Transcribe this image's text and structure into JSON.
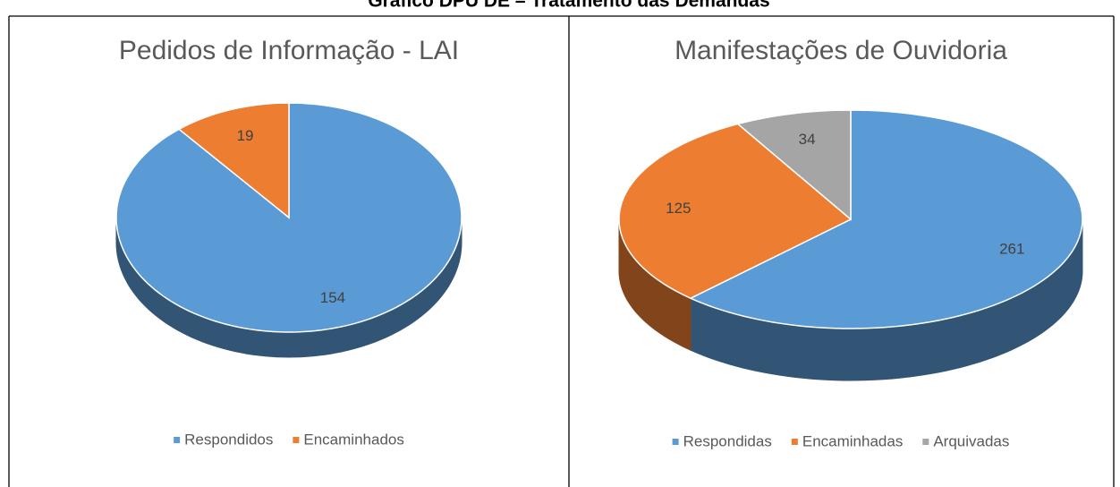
{
  "page_title": "Gráfico DPU DE – Tratamento das Demandas",
  "chart_data": [
    {
      "type": "pie3d",
      "title": "Pedidos de Informação - LAI",
      "categories": [
        "Respondidos",
        "Encaminhados"
      ],
      "values": [
        154,
        19
      ],
      "colors": [
        "#5b9bd5",
        "#ed7d31"
      ],
      "legend": "bottom"
    },
    {
      "type": "pie3d",
      "title": "Manifestações de Ouvidoria",
      "categories": [
        "Respondidas",
        "Encaminhadas",
        "Arquivadas"
      ],
      "values": [
        261,
        125,
        34
      ],
      "colors": [
        "#5b9bd5",
        "#ed7d31",
        "#a5a5a5"
      ],
      "legend": "bottom"
    }
  ]
}
